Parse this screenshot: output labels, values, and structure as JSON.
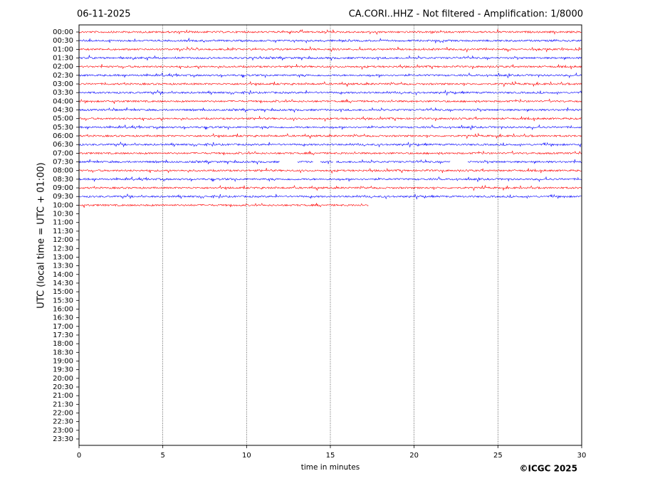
{
  "chart_data": {
    "type": "helicorder",
    "title": "06-11-2025",
    "subtitle": "CA.CORI..HHZ - Not filtered - Amplification: 1/8000",
    "y_label": "UTC (local time = UTC + 01:00)",
    "x_label": "time in minutes",
    "credit": "©ICGC 2025",
    "xlim": [
      0,
      30
    ],
    "xticks": [
      0,
      5,
      10,
      15,
      20,
      25,
      30
    ],
    "grid": true,
    "colors": [
      "#ff0000",
      "#0000ff"
    ],
    "categories": [
      "00:00",
      "00:30",
      "01:00",
      "01:30",
      "02:00",
      "02:30",
      "03:00",
      "03:30",
      "04:00",
      "04:30",
      "05:00",
      "05:30",
      "06:00",
      "06:30",
      "07:00",
      "07:30",
      "08:00",
      "08:30",
      "09:00",
      "09:30",
      "10:00",
      "10:30",
      "11:00",
      "11:30",
      "12:00",
      "12:30",
      "13:00",
      "13:30",
      "14:00",
      "14:30",
      "15:00",
      "15:30",
      "16:00",
      "16:30",
      "17:00",
      "17:30",
      "18:00",
      "18:30",
      "19:00",
      "19:30",
      "20:00",
      "20:30",
      "21:00",
      "21:30",
      "22:00",
      "22:30",
      "23:00",
      "23:30"
    ],
    "segments": [
      [
        [
          0,
          30
        ]
      ],
      [
        [
          0,
          30
        ]
      ],
      [
        [
          0,
          30
        ]
      ],
      [
        [
          0,
          30
        ]
      ],
      [
        [
          0,
          30
        ]
      ],
      [
        [
          0,
          30
        ]
      ],
      [
        [
          0,
          30
        ]
      ],
      [
        [
          0,
          30
        ]
      ],
      [
        [
          0,
          30
        ]
      ],
      [
        [
          0,
          30
        ]
      ],
      [
        [
          0,
          30
        ]
      ],
      [
        [
          0,
          30
        ]
      ],
      [
        [
          0,
          30
        ]
      ],
      [
        [
          0,
          30
        ]
      ],
      [
        [
          0,
          30
        ]
      ],
      [
        [
          0,
          12
        ],
        [
          13.05,
          14
        ],
        [
          14.4,
          15.15
        ],
        [
          15.35,
          22.15
        ],
        [
          23.2,
          30
        ]
      ],
      [
        [
          0,
          30
        ]
      ],
      [
        [
          0,
          30
        ]
      ],
      [
        [
          0,
          30
        ]
      ],
      [
        [
          0,
          30
        ]
      ],
      [
        [
          0,
          17.3
        ]
      ],
      null,
      null,
      null,
      null,
      null,
      null,
      null,
      null,
      null,
      null,
      null,
      null,
      null,
      null,
      null,
      null,
      null,
      null,
      null,
      null,
      null,
      null,
      null,
      null,
      null,
      null,
      null
    ]
  }
}
